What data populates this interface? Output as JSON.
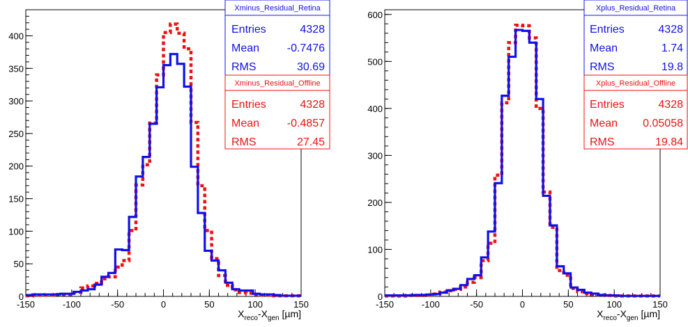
{
  "chart_data": [
    {
      "type": "histogram",
      "xlim": [
        -150,
        150
      ],
      "ylim": [
        0,
        440
      ],
      "x_ticks": [
        -150,
        -100,
        -50,
        0,
        50,
        100,
        150
      ],
      "y_ticks": [
        0,
        50,
        100,
        150,
        200,
        250,
        300,
        350,
        400
      ],
      "x_ticks_text": [
        "-150",
        "-100",
        "-50",
        "0",
        "50",
        "100",
        "150"
      ],
      "y_ticks_text": [
        "0",
        "50",
        "100",
        "150",
        "200",
        "250",
        "300",
        "350",
        "400"
      ],
      "xlabel": {
        "main": "X",
        "sub1": "reco",
        "mid": "-X",
        "sub2": "gen",
        "unit": " [µm]"
      },
      "bin_width": 7.5,
      "series": [
        {
          "name": "Xminus_Residual_Retina",
          "color": "#1010e8",
          "style": "solid",
          "bin_edges_start": -150,
          "counts": [
            2,
            3,
            3,
            3,
            3,
            4,
            4,
            7,
            9,
            11,
            18,
            30,
            36,
            72,
            71,
            122,
            184,
            214,
            265,
            321,
            355,
            372,
            357,
            322,
            199,
            128,
            70,
            55,
            40,
            21,
            11,
            9,
            9,
            4,
            3,
            3,
            2,
            1,
            1,
            1
          ],
          "stats": {
            "title": "Xminus_Residual_Retina",
            "rows": [
              {
                "label": "Entries",
                "value": "4328"
              },
              {
                "label": "Mean",
                "value": "-0.7476"
              },
              {
                "label": "RMS",
                "value": "30.69"
              }
            ]
          }
        },
        {
          "name": "Xminus_Residual_Offline",
          "color": "#ee1111",
          "style": "dashed",
          "bin_edges_start": -150,
          "counts": [
            1,
            2,
            2,
            2,
            3,
            3,
            3,
            6,
            13,
            16,
            20,
            27,
            30,
            45,
            55,
            101,
            171,
            202,
            266,
            340,
            405,
            418,
            404,
            380,
            267,
            170,
            101,
            58,
            32,
            17,
            10,
            6,
            5,
            3,
            2,
            2,
            1,
            1,
            1,
            1
          ],
          "stats": {
            "title": "Xminus_Residual_Offline",
            "rows": [
              {
                "label": "Entries",
                "value": "4328"
              },
              {
                "label": "Mean",
                "value": "-0.4857"
              },
              {
                "label": "RMS",
                "value": "27.45"
              }
            ]
          }
        }
      ]
    },
    {
      "type": "histogram",
      "xlim": [
        -150,
        150
      ],
      "ylim": [
        0,
        610
      ],
      "x_ticks": [
        -150,
        -100,
        -50,
        0,
        50,
        100,
        150
      ],
      "y_ticks": [
        0,
        100,
        200,
        300,
        400,
        500,
        600
      ],
      "x_ticks_text": [
        "-150",
        "-100",
        "-50",
        "0",
        "50",
        "100",
        "150"
      ],
      "y_ticks_text": [
        "0",
        "100",
        "200",
        "300",
        "400",
        "500",
        "600"
      ],
      "xlabel": {
        "main": "X",
        "sub1": "reco",
        "mid": "-X",
        "sub2": "gen",
        "unit": " [µm]"
      },
      "bin_width": 7.5,
      "series": [
        {
          "name": "Xplus_Residual_Retina",
          "color": "#1010e8",
          "style": "solid",
          "bin_edges_start": -150,
          "counts": [
            2,
            2,
            2,
            2,
            3,
            3,
            4,
            5,
            8,
            13,
            16,
            24,
            37,
            45,
            83,
            138,
            241,
            427,
            510,
            567,
            565,
            540,
            420,
            214,
            151,
            64,
            49,
            19,
            14,
            8,
            6,
            3,
            2,
            2,
            1,
            1,
            1,
            1,
            1,
            1
          ],
          "stats": {
            "title": "Xplus_Residual_Retina",
            "rows": [
              {
                "label": "Entries",
                "value": "4328"
              },
              {
                "label": "Mean",
                "value": "1.74"
              },
              {
                "label": "RMS",
                "value": "19.8"
              }
            ]
          }
        },
        {
          "name": "Xplus_Residual_Offline",
          "color": "#ee1111",
          "style": "dashed",
          "bin_edges_start": -150,
          "counts": [
            1,
            1,
            1,
            2,
            2,
            2,
            3,
            5,
            9,
            12,
            15,
            20,
            30,
            40,
            76,
            113,
            258,
            412,
            540,
            577,
            576,
            550,
            400,
            222,
            147,
            55,
            45,
            17,
            10,
            6,
            4,
            3,
            2,
            1,
            1,
            1,
            1,
            1,
            1,
            1
          ],
          "stats": {
            "title": "Xplus_Residual_Offline",
            "rows": [
              {
                "label": "Entries",
                "value": "4328"
              },
              {
                "label": "Mean",
                "value": "0.05058"
              },
              {
                "label": "RMS",
                "value": "19.84"
              }
            ]
          }
        }
      ]
    }
  ]
}
